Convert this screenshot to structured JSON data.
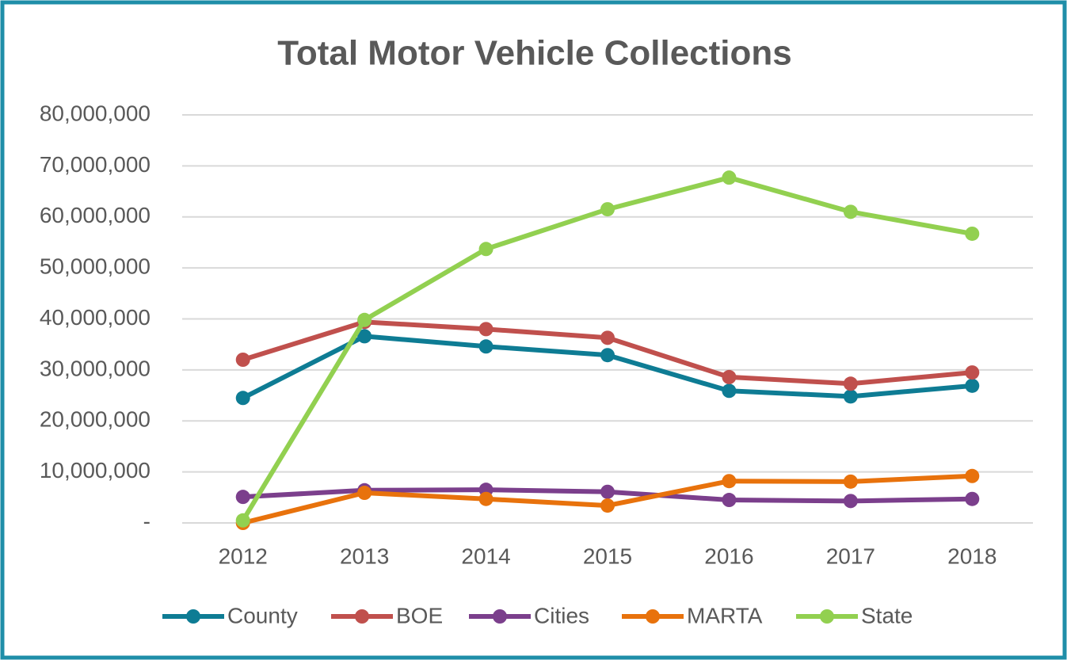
{
  "chart_data": {
    "type": "line",
    "title": "Total Motor Vehicle Collections",
    "categories": [
      "2012",
      "2013",
      "2014",
      "2015",
      "2016",
      "2017",
      "2018"
    ],
    "series": [
      {
        "name": "County",
        "color": "#0e7c94",
        "values": [
          24500000,
          36600000,
          34600000,
          32900000,
          25900000,
          24800000,
          26900000
        ]
      },
      {
        "name": "BOE",
        "color": "#c0504d",
        "values": [
          32000000,
          39400000,
          38000000,
          36300000,
          28600000,
          27300000,
          29500000
        ]
      },
      {
        "name": "Cities",
        "color": "#7b3f8c",
        "values": [
          5100000,
          6400000,
          6500000,
          6100000,
          4500000,
          4300000,
          4700000
        ]
      },
      {
        "name": "MARTA",
        "color": "#e8720c",
        "values": [
          0,
          5900000,
          4700000,
          3400000,
          8200000,
          8100000,
          9200000
        ]
      },
      {
        "name": "State",
        "color": "#92d050",
        "values": [
          500000,
          39800000,
          53700000,
          61500000,
          67700000,
          61000000,
          56700000
        ]
      }
    ],
    "ylim": [
      0,
      80000000
    ],
    "yticks": [
      {
        "value": 0,
        "label": "-"
      },
      {
        "value": 10000000,
        "label": "10,000,000"
      },
      {
        "value": 20000000,
        "label": "20,000,000"
      },
      {
        "value": 30000000,
        "label": "30,000,000"
      },
      {
        "value": 40000000,
        "label": "40,000,000"
      },
      {
        "value": 50000000,
        "label": "50,000,000"
      },
      {
        "value": 60000000,
        "label": "60,000,000"
      },
      {
        "value": 70000000,
        "label": "70,000,000"
      },
      {
        "value": 80000000,
        "label": "80,000,000"
      }
    ],
    "grid": true,
    "legend": "bottom"
  }
}
